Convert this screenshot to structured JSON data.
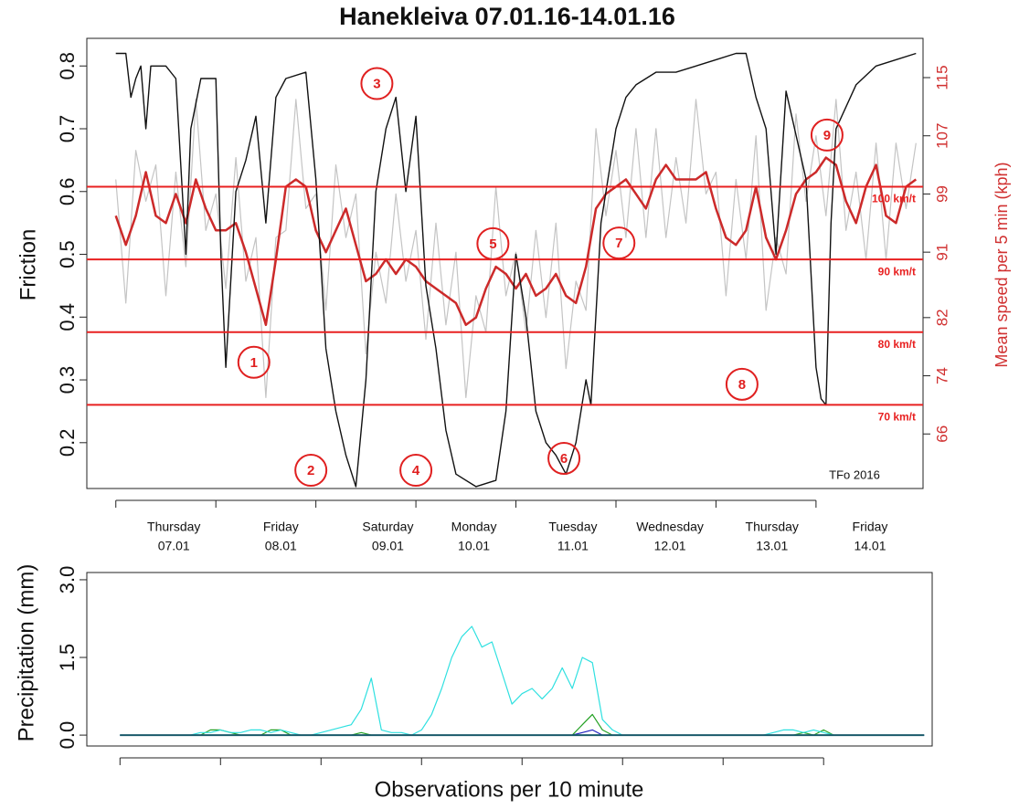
{
  "chart_data": [
    {
      "type": "line",
      "title": "Hanekleiva 07.01.16-14.01.16",
      "y_label": "Friction",
      "y2_label": "Mean speed per 5 min (kph)",
      "credit": "TFo 2016",
      "xlim": [
        -0.29,
        8.07
      ],
      "xticks": [
        0,
        1,
        2,
        3,
        4,
        5,
        6,
        7
      ],
      "ylim": [
        0.127,
        0.844
      ],
      "yticks": [
        0.2,
        0.3,
        0.4,
        0.5,
        0.6,
        0.7,
        0.8
      ],
      "y2lim": [
        58.5,
        120.4
      ],
      "y2ticks": [
        66,
        74,
        82,
        91,
        99,
        107,
        115
      ],
      "day_labels": [
        {
          "value": 0.58,
          "day": "Thursday",
          "date": "07.01"
        },
        {
          "value": 1.65,
          "day": "Friday",
          "date": "08.01"
        },
        {
          "value": 2.72,
          "day": "Saturday",
          "date": "09.01"
        },
        {
          "value": 3.58,
          "day": "Monday",
          "date": "10.01"
        },
        {
          "value": 4.57,
          "day": "Tuesday",
          "date": "11.01"
        },
        {
          "value": 5.54,
          "day": "Wednesday",
          "date": "12.01"
        },
        {
          "value": 6.56,
          "day": "Thursday",
          "date": "13.01"
        },
        {
          "value": 7.54,
          "day": "Friday",
          "date": "14.01"
        }
      ],
      "x": [
        0,
        0.1,
        0.2,
        0.3,
        0.4,
        0.5,
        0.6,
        0.7,
        0.8,
        0.9,
        1,
        1.1,
        1.2,
        1.3,
        1.4,
        1.5,
        1.6,
        1.7,
        1.8,
        1.9,
        2,
        2.1,
        2.2,
        2.3,
        2.4,
        2.5,
        2.6,
        2.7,
        2.8,
        2.9,
        3,
        3.1,
        3.2,
        3.3,
        3.4,
        3.5,
        3.6,
        3.7,
        3.8,
        3.9,
        4,
        4.1,
        4.2,
        4.3,
        4.4,
        4.5,
        4.6,
        4.7,
        4.8,
        4.9,
        5,
        5.1,
        5.2,
        5.3,
        5.4,
        5.5,
        5.6,
        5.7,
        5.8,
        5.9,
        6,
        6.1,
        6.2,
        6.3,
        6.4,
        6.5,
        6.6,
        6.7,
        6.8,
        6.9,
        7,
        7.1,
        7.2,
        7.3,
        7.4,
        7.5,
        7.6,
        7.7,
        7.8,
        7.9,
        8
      ],
      "series": [
        {
          "color": "#c4c4c4",
          "axis": "y2",
          "width": 1.2,
          "values": [
            101,
            84,
            105,
            98,
            103,
            85,
            102,
            89,
            112,
            94,
            99,
            86,
            104,
            87,
            93,
            71,
            93,
            94,
            112,
            97,
            99,
            83,
            103,
            93,
            99,
            77,
            91,
            84,
            99,
            87,
            94,
            79,
            95,
            81,
            91,
            71,
            85,
            80,
            100,
            85,
            91,
            80,
            94,
            82,
            95,
            75,
            87,
            83,
            108,
            96,
            105,
            93,
            108,
            93,
            108,
            93,
            104,
            95,
            112,
            99,
            102,
            85,
            101,
            90,
            107,
            83,
            93,
            88,
            110,
            98,
            107,
            96,
            112,
            94,
            102,
            90,
            106,
            90,
            106,
            97,
            106
          ]
        },
        {
          "color": "#cc2a2a",
          "axis": "y2",
          "width": 2.5,
          "values": [
            96,
            92,
            96,
            102,
            96,
            95,
            99,
            95,
            101,
            97,
            94,
            94,
            95,
            91,
            86,
            81,
            90,
            100,
            101,
            100,
            94,
            91,
            94,
            97,
            92,
            87,
            88,
            90,
            88,
            90,
            89,
            87,
            86,
            85,
            84,
            81,
            82,
            86,
            89,
            88,
            86,
            88,
            85,
            86,
            88,
            85,
            84,
            89,
            97,
            99,
            100,
            101,
            99,
            97,
            101,
            103,
            101,
            101,
            101,
            102,
            97,
            93,
            92,
            94,
            100,
            93,
            90,
            94,
            99,
            101,
            102,
            104,
            103,
            98,
            95,
            100,
            103,
            96,
            95,
            100,
            101
          ]
        },
        {
          "color": "#111111",
          "axis": "y",
          "width": 1.4,
          "x": [
            0,
            0.1,
            0.15,
            0.2,
            0.25,
            0.3,
            0.35,
            0.5,
            0.6,
            0.7,
            0.75,
            0.85,
            1.0,
            1.05,
            1.1,
            1.2,
            1.3,
            1.4,
            1.5,
            1.6,
            1.7,
            1.9,
            2.0,
            2.1,
            2.2,
            2.3,
            2.4,
            2.5,
            2.6,
            2.7,
            2.8,
            2.9,
            3.0,
            3.1,
            3.2,
            3.3,
            3.4,
            3.6,
            3.8,
            3.9,
            4.0,
            4.1,
            4.2,
            4.3,
            4.4,
            4.5,
            4.6,
            4.7,
            4.75,
            4.85,
            5.0,
            5.1,
            5.2,
            5.4,
            5.6,
            5.8,
            6.0,
            6.2,
            6.3,
            6.4,
            6.5,
            6.6,
            6.7,
            6.9,
            7.0,
            7.05,
            7.1,
            7.15,
            7.2,
            7.4,
            7.6,
            7.8,
            8.0
          ],
          "values": [
            0.82,
            0.82,
            0.75,
            0.78,
            0.8,
            0.7,
            0.8,
            0.8,
            0.78,
            0.5,
            0.7,
            0.78,
            0.78,
            0.5,
            0.32,
            0.6,
            0.65,
            0.72,
            0.55,
            0.75,
            0.78,
            0.79,
            0.62,
            0.35,
            0.25,
            0.18,
            0.13,
            0.3,
            0.6,
            0.7,
            0.75,
            0.6,
            0.72,
            0.45,
            0.35,
            0.22,
            0.15,
            0.13,
            0.14,
            0.25,
            0.5,
            0.4,
            0.25,
            0.2,
            0.18,
            0.15,
            0.2,
            0.3,
            0.26,
            0.55,
            0.7,
            0.75,
            0.77,
            0.79,
            0.79,
            0.8,
            0.81,
            0.82,
            0.82,
            0.75,
            0.7,
            0.5,
            0.76,
            0.62,
            0.32,
            0.27,
            0.26,
            0.55,
            0.7,
            0.77,
            0.8,
            0.81,
            0.82
          ]
        }
      ],
      "reference_lines": [
        {
          "value": 100,
          "label": "100 km/t",
          "axis": "y2",
          "color": "#e82020"
        },
        {
          "value": 90,
          "label": "90 km/t",
          "axis": "y2",
          "color": "#e82020"
        },
        {
          "value": 80,
          "label": "80 km/t",
          "axis": "y2",
          "color": "#e82020"
        },
        {
          "value": 70,
          "label": "70 km/t",
          "axis": "y2",
          "color": "#e82020"
        }
      ],
      "annotations": [
        {
          "label": "1",
          "x": 1.38,
          "y": 0.328
        },
        {
          "label": "2",
          "x": 1.95,
          "y": 0.156
        },
        {
          "label": "3",
          "x": 2.61,
          "y": 0.772
        },
        {
          "label": "4",
          "x": 3.0,
          "y": 0.156
        },
        {
          "label": "5",
          "x": 3.77,
          "y": 0.517
        },
        {
          "label": "6",
          "x": 4.48,
          "y": 0.175
        },
        {
          "label": "7",
          "x": 5.03,
          "y": 0.518
        },
        {
          "label": "8",
          "x": 6.26,
          "y": 0.293
        },
        {
          "label": "9",
          "x": 7.11,
          "y": 0.69
        }
      ]
    },
    {
      "type": "line",
      "y_label": "Precipitation (mm)",
      "x_label": "Observations per 10 minute",
      "xlim": [
        -0.33,
        8.08
      ],
      "xticks": [
        0,
        1,
        2,
        3,
        4,
        5,
        6,
        7
      ],
      "ylim": [
        -0.21,
        3.14
      ],
      "yticks": [
        {
          "value": 0,
          "label": "0.0"
        },
        1.5,
        {
          "value": 3,
          "label": "3.0"
        }
      ],
      "x": [
        0,
        0.1,
        0.2,
        0.3,
        0.4,
        0.5,
        0.6,
        0.7,
        0.8,
        0.9,
        1,
        1.1,
        1.2,
        1.3,
        1.4,
        1.5,
        1.6,
        1.7,
        1.8,
        1.9,
        2,
        2.1,
        2.2,
        2.3,
        2.4,
        2.5,
        2.6,
        2.7,
        2.8,
        2.9,
        3,
        3.1,
        3.2,
        3.3,
        3.4,
        3.5,
        3.6,
        3.7,
        3.8,
        3.9,
        4,
        4.1,
        4.2,
        4.3,
        4.4,
        4.5,
        4.6,
        4.7,
        4.8,
        4.9,
        5,
        5.1,
        5.2,
        5.3,
        5.4,
        5.5,
        5.6,
        5.7,
        5.8,
        5.9,
        6,
        6.1,
        6.2,
        6.3,
        6.4,
        6.5,
        6.6,
        6.7,
        6.8,
        6.9,
        7,
        7.1,
        7.2,
        7.3,
        7.4,
        7.5,
        7.6,
        7.7,
        7.8,
        7.9,
        8
      ],
      "series": [
        {
          "color": "#22a022",
          "width": 1.2,
          "x": [
            0,
            0.8,
            0.9,
            1.0,
            1.1,
            1.2,
            1.4,
            1.5,
            1.6,
            1.7,
            2.3,
            2.4,
            2.5,
            4.5,
            4.6,
            4.7,
            4.8,
            4.9,
            6.7,
            6.8,
            6.9,
            7.0,
            7.1,
            8.0
          ],
          "values": [
            0,
            0,
            0.1,
            0.1,
            0.05,
            0,
            0,
            0.1,
            0.1,
            0,
            0,
            0.05,
            0,
            0,
            0.2,
            0.4,
            0.1,
            0,
            0,
            0.05,
            0,
            0.1,
            0,
            0
          ]
        },
        {
          "color": "#2ee0e0",
          "width": 1.2,
          "values": [
            0,
            0,
            0,
            0,
            0,
            0,
            0,
            0,
            0.05,
            0.05,
            0.1,
            0.05,
            0.05,
            0.1,
            0.1,
            0.05,
            0.1,
            0.05,
            0,
            0,
            0.05,
            0.1,
            0.15,
            0.2,
            0.5,
            1.1,
            0.1,
            0.05,
            0.05,
            0,
            0.1,
            0.4,
            0.9,
            1.5,
            1.9,
            2.1,
            1.7,
            1.8,
            1.2,
            0.6,
            0.8,
            0.9,
            0.7,
            0.9,
            1.3,
            0.9,
            1.5,
            1.4,
            0.3,
            0.1,
            0,
            0,
            0,
            0,
            0,
            0,
            0,
            0,
            0,
            0,
            0,
            0,
            0,
            0,
            0,
            0.05,
            0.1,
            0.1,
            0.05,
            0.1,
            0.05,
            0,
            0,
            0,
            0,
            0,
            0,
            0,
            0,
            0,
            0
          ]
        },
        {
          "color": "#2020c0",
          "width": 1.2,
          "x": [
            0,
            4.5,
            4.6,
            4.7,
            4.8,
            8.0
          ],
          "values": [
            0,
            0,
            0.05,
            0.1,
            0,
            0
          ]
        },
        {
          "color": "#1a5a6a",
          "width": 2,
          "x": [
            0,
            8.0
          ],
          "values": [
            0,
            0
          ]
        }
      ]
    }
  ]
}
